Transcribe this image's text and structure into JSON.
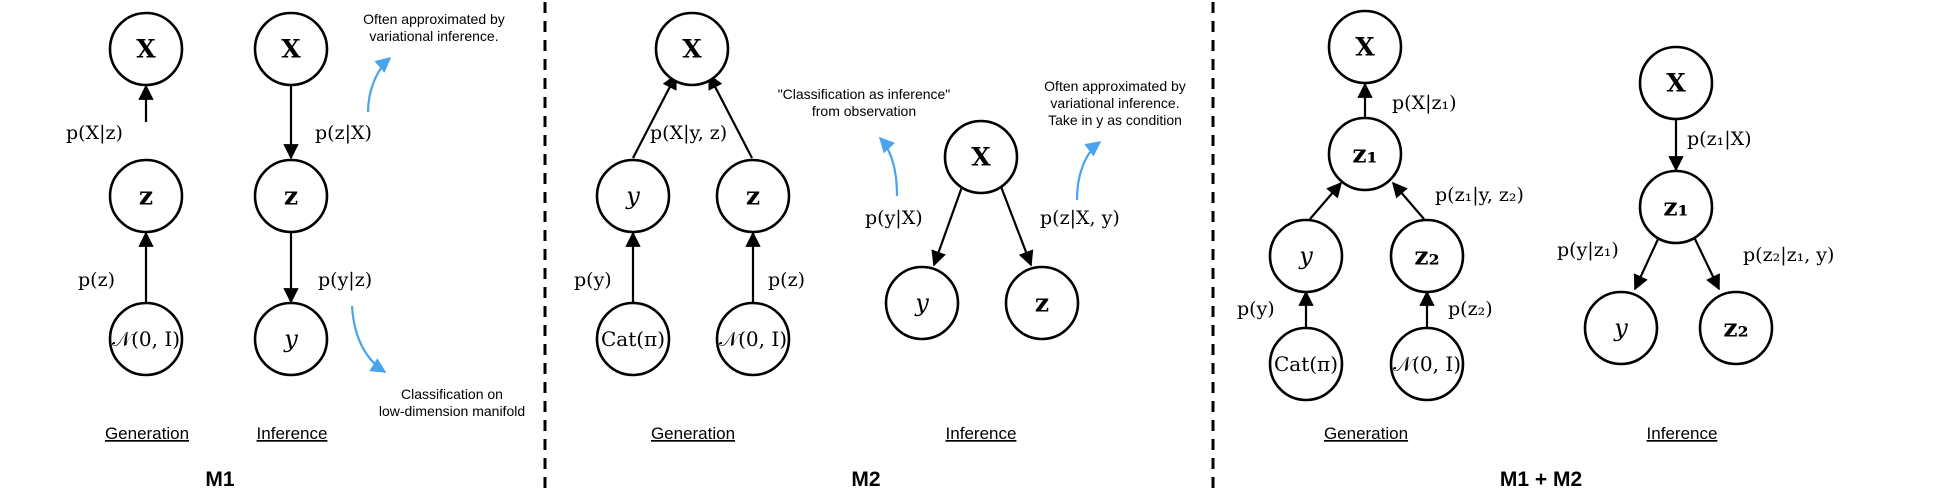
{
  "sections": {
    "m1": {
      "title": "M1",
      "generation": {
        "caption": "Generation",
        "nodes": {
          "x": "X",
          "z": "z",
          "prior": "𝒩(0, I)"
        },
        "edges": {
          "p_x_given_z": "p(X|z)",
          "p_z": "p(z)"
        }
      },
      "inference": {
        "caption": "Inference",
        "nodes": {
          "x": "X",
          "z": "z",
          "y": "y"
        },
        "edges": {
          "p_z_given_x": "p(z|X)",
          "p_y_given_z": "p(y|z)"
        },
        "notes": {
          "top": [
            "Often approximated by",
            "variational inference."
          ],
          "bottom": [
            "Classification on",
            "low-dimension manifold"
          ]
        }
      }
    },
    "m2": {
      "title": "M2",
      "generation": {
        "caption": "Generation",
        "nodes": {
          "x": "X",
          "y": "y",
          "z": "z",
          "cat": "Cat(π)",
          "prior": "𝒩(0, I)"
        },
        "edges": {
          "p_x_given_yz": "p(X|y, z)",
          "p_y": "p(y)",
          "p_z": "p(z)"
        }
      },
      "inference": {
        "caption": "Inference",
        "nodes": {
          "x": "X",
          "y": "y",
          "z": "z"
        },
        "edges": {
          "p_y_given_x": "p(y|X)",
          "p_z_given_xy": "p(z|X, y)"
        },
        "notes": {
          "left": [
            "\"Classification as inference\"",
            "from observation"
          ],
          "right": [
            "Often approximated by",
            "variational inference.",
            "Take in y as condition"
          ]
        }
      }
    },
    "m1m2": {
      "title": "M1 + M2",
      "generation": {
        "caption": "Generation",
        "nodes": {
          "x": "X",
          "z1": "z₁",
          "y": "y",
          "z2": "z₂",
          "cat": "Cat(π)",
          "prior": "𝒩(0, I)"
        },
        "edges": {
          "p_x_given_z1": "p(X|z₁)",
          "p_z1_given_yz2": "p(z₁|y, z₂)",
          "p_y": "p(y)",
          "p_z2": "p(z₂)"
        }
      },
      "inference": {
        "caption": "Inference",
        "nodes": {
          "x": "X",
          "z1": "z₁",
          "y": "y",
          "z2": "z₂"
        },
        "edges": {
          "p_z1_given_x": "p(z₁|X)",
          "p_y_given_z1": "p(y|z₁)",
          "p_z2_given_z1y": "p(z₂|z₁, y)"
        }
      }
    }
  },
  "colors": {
    "annotation_arrow": "#4aa3ee",
    "ink": "#000000"
  }
}
